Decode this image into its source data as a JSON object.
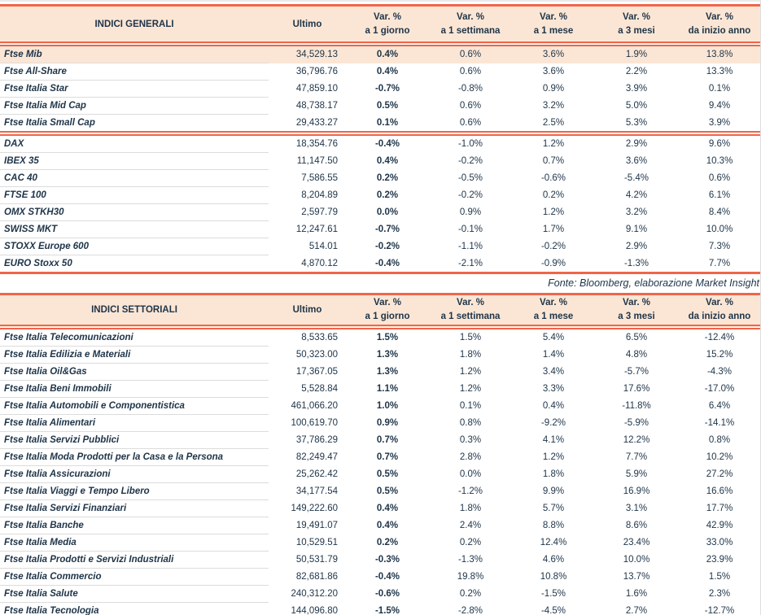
{
  "colors": {
    "accent": "#F0654A",
    "header_bg": "#FBE6D5",
    "ink": "#1E3448",
    "divider": "#DCDCDC"
  },
  "source_note": "Fonte: Bloomberg, elaborazione Market Insight",
  "col_headers": {
    "ultimo": "Ultimo",
    "vars": [
      {
        "l1": "Var. %",
        "l2": "a 1 giorno"
      },
      {
        "l1": "Var. %",
        "l2": "a 1 settimana"
      },
      {
        "l1": "Var. %",
        "l2": "a 1 mese"
      },
      {
        "l1": "Var. %",
        "l2": "a 3 mesi"
      },
      {
        "l1": "Var. %",
        "l2": "da inizio anno"
      }
    ]
  },
  "tables": [
    {
      "id": "indici-generali",
      "title": "INDICI GENERALI",
      "groups": [
        [
          {
            "name": "Ftse Mib",
            "ultimo": "34,529.13",
            "vars": [
              "0.4%",
              "0.6%",
              "3.6%",
              "1.9%",
              "13.8%"
            ],
            "highlight": true
          },
          {
            "name": "Ftse All-Share",
            "ultimo": "36,796.76",
            "vars": [
              "0.4%",
              "0.6%",
              "3.6%",
              "2.2%",
              "13.3%"
            ]
          },
          {
            "name": "Ftse Italia Star",
            "ultimo": "47,859.10",
            "vars": [
              "-0.7%",
              "-0.8%",
              "0.9%",
              "3.9%",
              "0.1%"
            ]
          },
          {
            "name": "Ftse Italia Mid Cap",
            "ultimo": "48,738.17",
            "vars": [
              "0.5%",
              "0.6%",
              "3.2%",
              "5.0%",
              "9.4%"
            ]
          },
          {
            "name": "Ftse Italia Small Cap",
            "ultimo": "29,433.27",
            "vars": [
              "0.1%",
              "0.6%",
              "2.5%",
              "5.3%",
              "3.9%"
            ]
          }
        ],
        [
          {
            "name": "DAX",
            "ultimo": "18,354.76",
            "vars": [
              "-0.4%",
              "-1.0%",
              "1.2%",
              "2.9%",
              "9.6%"
            ]
          },
          {
            "name": "IBEX 35",
            "ultimo": "11,147.50",
            "vars": [
              "0.4%",
              "-0.2%",
              "0.7%",
              "3.6%",
              "10.3%"
            ]
          },
          {
            "name": "CAC 40",
            "ultimo": "7,586.55",
            "vars": [
              "0.2%",
              "-0.5%",
              "-0.6%",
              "-5.4%",
              "0.6%"
            ]
          },
          {
            "name": "FTSE 100",
            "ultimo": "8,204.89",
            "vars": [
              "0.2%",
              "-0.2%",
              "0.2%",
              "4.2%",
              "6.1%"
            ]
          },
          {
            "name": "OMX STKH30",
            "ultimo": "2,597.79",
            "vars": [
              "0.0%",
              "0.9%",
              "1.2%",
              "3.2%",
              "8.4%"
            ]
          },
          {
            "name": "SWISS MKT",
            "ultimo": "12,247.61",
            "vars": [
              "-0.7%",
              "-0.1%",
              "1.7%",
              "9.1%",
              "10.0%"
            ]
          },
          {
            "name": "STOXX Europe 600",
            "ultimo": "514.01",
            "vars": [
              "-0.2%",
              "-1.1%",
              "-0.2%",
              "2.9%",
              "7.3%"
            ]
          },
          {
            "name": "EURO Stoxx 50",
            "ultimo": "4,870.12",
            "vars": [
              "-0.4%",
              "-2.1%",
              "-0.9%",
              "-1.3%",
              "7.7%"
            ]
          }
        ]
      ]
    },
    {
      "id": "indici-settoriali",
      "title": "INDICI SETTORIALI",
      "groups": [
        [
          {
            "name": "Ftse Italia Telecomunicazioni",
            "ultimo": "8,533.65",
            "vars": [
              "1.5%",
              "1.5%",
              "5.4%",
              "6.5%",
              "-12.4%"
            ]
          },
          {
            "name": "Ftse Italia Edilizia e Materiali",
            "ultimo": "50,323.00",
            "vars": [
              "1.3%",
              "1.8%",
              "1.4%",
              "4.8%",
              "15.2%"
            ]
          },
          {
            "name": "Ftse Italia Oil&Gas",
            "ultimo": "17,367.05",
            "vars": [
              "1.3%",
              "1.2%",
              "3.4%",
              "-5.7%",
              "-4.3%"
            ]
          },
          {
            "name": "Ftse Italia Beni Immobili",
            "ultimo": "5,528.84",
            "vars": [
              "1.1%",
              "1.2%",
              "3.3%",
              "17.6%",
              "-17.0%"
            ]
          },
          {
            "name": "Ftse Italia Automobili e Componentistica",
            "ultimo": "461,066.20",
            "vars": [
              "1.0%",
              "0.1%",
              "0.4%",
              "-11.8%",
              "6.4%"
            ]
          },
          {
            "name": "Ftse Italia Alimentari",
            "ultimo": "100,619.70",
            "vars": [
              "0.9%",
              "0.8%",
              "-9.2%",
              "-5.9%",
              "-14.1%"
            ]
          },
          {
            "name": "Ftse Italia Servizi Pubblici",
            "ultimo": "37,786.29",
            "vars": [
              "0.7%",
              "0.3%",
              "4.1%",
              "12.2%",
              "0.8%"
            ]
          },
          {
            "name": "Ftse Italia Moda Prodotti per la Casa e la Persona",
            "ultimo": "82,249.47",
            "vars": [
              "0.7%",
              "2.8%",
              "1.2%",
              "7.7%",
              "10.2%"
            ]
          },
          {
            "name": "Ftse Italia Assicurazioni",
            "ultimo": "25,262.42",
            "vars": [
              "0.5%",
              "0.0%",
              "1.8%",
              "5.9%",
              "27.2%"
            ]
          },
          {
            "name": "Ftse Italia Viaggi e Tempo Libero",
            "ultimo": "34,177.54",
            "vars": [
              "0.5%",
              "-1.2%",
              "9.9%",
              "16.9%",
              "16.6%"
            ]
          },
          {
            "name": "Ftse Italia Servizi Finanziari",
            "ultimo": "149,222.60",
            "vars": [
              "0.4%",
              "1.8%",
              "5.7%",
              "3.1%",
              "17.7%"
            ]
          },
          {
            "name": "Ftse Italia Banche",
            "ultimo": "19,491.07",
            "vars": [
              "0.4%",
              "2.4%",
              "8.8%",
              "8.6%",
              "42.9%"
            ]
          },
          {
            "name": "Ftse Italia Media",
            "ultimo": "10,529.51",
            "vars": [
              "0.2%",
              "0.2%",
              "12.4%",
              "23.4%",
              "33.0%"
            ]
          },
          {
            "name": "Ftse Italia Prodotti e Servizi Industriali",
            "ultimo": "50,531.79",
            "vars": [
              "-0.3%",
              "-1.3%",
              "4.6%",
              "10.0%",
              "23.9%"
            ]
          },
          {
            "name": "Ftse Italia Commercio",
            "ultimo": "82,681.86",
            "vars": [
              "-0.4%",
              "19.8%",
              "10.8%",
              "13.7%",
              "1.5%"
            ]
          },
          {
            "name": "Ftse Italia Salute",
            "ultimo": "240,312.20",
            "vars": [
              "-0.6%",
              "0.2%",
              "-1.5%",
              "1.6%",
              "2.3%"
            ]
          },
          {
            "name": "Ftse Italia Tecnologia",
            "ultimo": "144,096.80",
            "vars": [
              "-1.5%",
              "-2.8%",
              "-4.5%",
              "2.7%",
              "-12.7%"
            ]
          }
        ]
      ]
    }
  ]
}
